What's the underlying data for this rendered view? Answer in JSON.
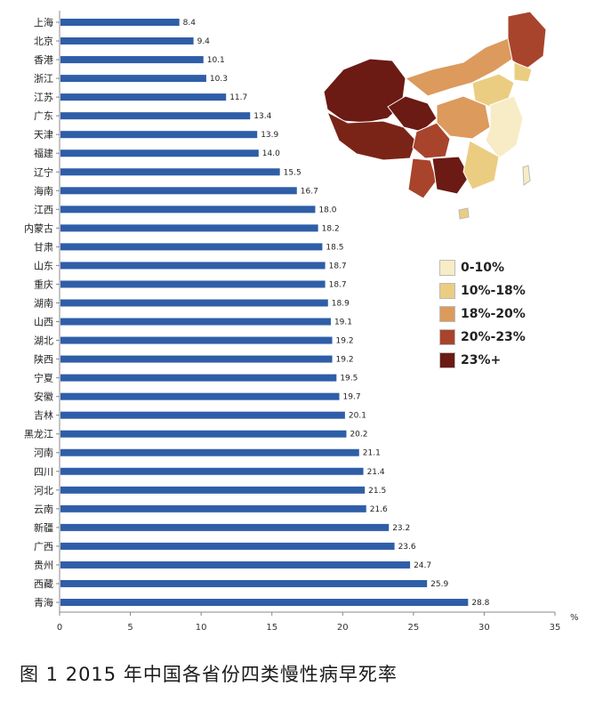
{
  "caption": "图 1   2015 年中国各省份四类慢性病早死率",
  "unit_label": "%",
  "legend": {
    "items": [
      {
        "label": "0-10%",
        "color": "#f7ecc6"
      },
      {
        "label": "10%-18%",
        "color": "#ebcd82"
      },
      {
        "label": "18%-20%",
        "color": "#dc9a5d"
      },
      {
        "label": "20%-23%",
        "color": "#a8442c"
      },
      {
        "label": "23%+",
        "color": "#6b1a14"
      }
    ]
  },
  "chart_data": {
    "type": "bar",
    "orientation": "horizontal",
    "categories": [
      "上海",
      "北京",
      "香港",
      "浙江",
      "江苏",
      "广东",
      "天津",
      "福建",
      "辽宁",
      "海南",
      "江西",
      "内蒙古",
      "甘肃",
      "山东",
      "重庆",
      "湖南",
      "山西",
      "湖北",
      "陕西",
      "宁夏",
      "安徽",
      "吉林",
      "黑龙江",
      "河南",
      "四川",
      "河北",
      "云南",
      "新疆",
      "广西",
      "贵州",
      "西藏",
      "青海"
    ],
    "value_labels": [
      "8.4",
      "9.4",
      "10.1",
      "10.3",
      "11.7",
      "13.4",
      "13.9",
      "14.0",
      "15.5",
      "16.7",
      "18.0",
      "18.2",
      "18.5",
      "18.7",
      "18.7",
      "18.9",
      "19.1",
      "19.2",
      "19.2",
      "19.5",
      "19.7",
      "20.1",
      "20.2",
      "21.1",
      "21.4",
      "21.5",
      "21.6",
      "23.2",
      "23.6",
      "24.7",
      "25.9",
      "28.8"
    ],
    "values": [
      8.4,
      9.4,
      10.1,
      10.3,
      11.7,
      13.4,
      13.9,
      14.0,
      15.5,
      16.7,
      18.0,
      18.2,
      18.5,
      18.7,
      18.7,
      18.9,
      19.1,
      19.2,
      19.2,
      19.5,
      19.7,
      20.1,
      20.2,
      21.1,
      21.4,
      21.5,
      21.6,
      23.2,
      23.6,
      24.7,
      25.9,
      28.8
    ],
    "xlim": [
      0,
      35
    ],
    "xticks": [
      "0",
      "5",
      "10",
      "15",
      "20",
      "25",
      "30",
      "35"
    ],
    "bar_color": "#2f5ea8",
    "grid": false
  }
}
